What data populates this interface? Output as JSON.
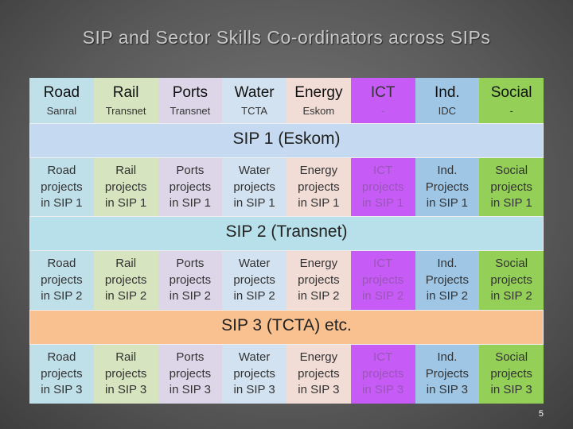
{
  "title": "SIP and Sector Skills Co-ordinators across SIPs",
  "table": {
    "header": [
      {
        "name": "Road",
        "owner": "Sanral"
      },
      {
        "name": "Rail",
        "owner": "Transnet"
      },
      {
        "name": "Ports",
        "owner": "Transnet"
      },
      {
        "name": "Water",
        "owner": "TCTA"
      },
      {
        "name": "Energy",
        "owner": "Eskom"
      },
      {
        "name": "ICT",
        "owner": "-"
      },
      {
        "name": "Ind.",
        "owner": "IDC"
      },
      {
        "name": "Social",
        "owner": "-"
      }
    ],
    "sections": [
      {
        "label": "SIP 1 (Eskom)",
        "cells": [
          "Road\nprojects\nin SIP 1",
          "Rail\nprojects\nin SIP 1",
          "Ports\nprojects\nin SIP 1",
          "Water\nprojects\nin SIP 1",
          "Energy\nprojects\nin SIP 1",
          "ICT\nprojects\nin SIP 1",
          "Ind.\nProjects\nin SIP 1",
          "Social\nprojects\nin SIP 1"
        ]
      },
      {
        "label": "SIP 2 (Transnet)",
        "cells": [
          "Road\nprojects\nin SIP 2",
          "Rail\nprojects\nin SIP 2",
          "Ports\nprojects\nin SIP 2",
          "Water\nprojects\nin SIP 2",
          "Energy\nprojects\nin SIP 2",
          "ICT\nprojects\nin SIP 2",
          "Ind.\nProjects\nin SIP 2",
          "Social\nprojects\nin SIP 2"
        ]
      },
      {
        "label": "SIP 3 (TCTA) etc.",
        "cells": [
          "Road\nprojects\nin SIP 3",
          "Rail\nprojects\nin SIP 3",
          "Ports\nprojects\nin SIP 3",
          "Water\nprojects\nin SIP 3",
          "Energy\nprojects\nin SIP 3",
          "ICT\nprojects\nin SIP 3",
          "Ind.\nProjects\nin SIP 3",
          "Social\nprojects\nin SIP 3"
        ]
      }
    ]
  },
  "page_number": "5"
}
